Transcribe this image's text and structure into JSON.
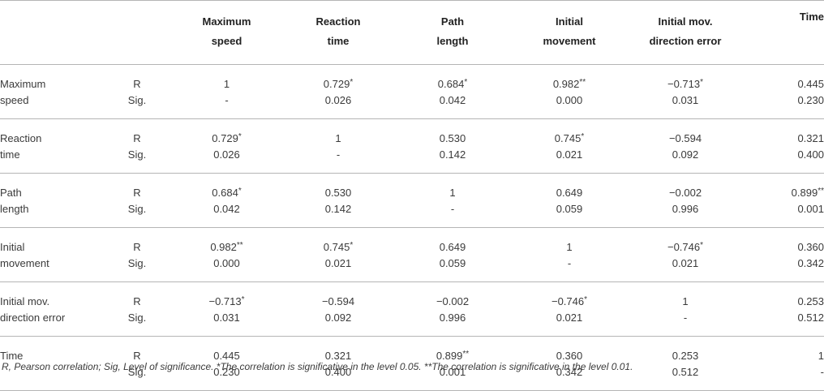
{
  "header": {
    "columns": [
      [
        "Maximum",
        "speed"
      ],
      [
        "Reaction",
        "time"
      ],
      [
        "Path",
        "length"
      ],
      [
        "Initial",
        "movement"
      ],
      [
        "Initial mov.",
        "direction error"
      ],
      [
        "Time",
        ""
      ]
    ]
  },
  "rows": [
    {
      "label": [
        "Maximum",
        "speed"
      ],
      "r": [
        [
          "1",
          ""
        ],
        [
          "0.729",
          "*"
        ],
        [
          "0.684",
          "*"
        ],
        [
          "0.982",
          "**"
        ],
        [
          "−0.713",
          "*"
        ],
        [
          "0.445",
          ""
        ]
      ],
      "sig": [
        "-",
        "0.026",
        "0.042",
        "0.000",
        "0.031",
        "0.230"
      ]
    },
    {
      "label": [
        "Reaction",
        "time"
      ],
      "r": [
        [
          "0.729",
          "*"
        ],
        [
          "1",
          ""
        ],
        [
          "0.530",
          ""
        ],
        [
          "0.745",
          "*"
        ],
        [
          "−0.594",
          ""
        ],
        [
          "0.321",
          ""
        ]
      ],
      "sig": [
        "0.026",
        "-",
        "0.142",
        "0.021",
        "0.092",
        "0.400"
      ]
    },
    {
      "label": [
        "Path",
        "length"
      ],
      "r": [
        [
          "0.684",
          "*"
        ],
        [
          "0.530",
          ""
        ],
        [
          "1",
          ""
        ],
        [
          "0.649",
          ""
        ],
        [
          "−0.002",
          ""
        ],
        [
          "0.899",
          "**"
        ]
      ],
      "sig": [
        "0.042",
        "0.142",
        "-",
        "0.059",
        "0.996",
        "0.001"
      ]
    },
    {
      "label": [
        "Initial",
        "movement"
      ],
      "r": [
        [
          "0.982",
          "**"
        ],
        [
          "0.745",
          "*"
        ],
        [
          "0.649",
          ""
        ],
        [
          "1",
          ""
        ],
        [
          "−0.746",
          "*"
        ],
        [
          "0.360",
          ""
        ]
      ],
      "sig": [
        "0.000",
        "0.021",
        "0.059",
        "-",
        "0.021",
        "0.342"
      ]
    },
    {
      "label": [
        "Initial mov.",
        "direction error"
      ],
      "r": [
        [
          "−0.713",
          "*"
        ],
        [
          "−0.594",
          ""
        ],
        [
          "−0.002",
          ""
        ],
        [
          "−0.746",
          "*"
        ],
        [
          "1",
          ""
        ],
        [
          "0.253",
          ""
        ]
      ],
      "sig": [
        "0.031",
        "0.092",
        "0.996",
        "0.021",
        "-",
        "0.512"
      ]
    },
    {
      "label": [
        "Time",
        ""
      ],
      "r": [
        [
          "0.445",
          ""
        ],
        [
          "0.321",
          ""
        ],
        [
          "0.899",
          "**"
        ],
        [
          "0.360",
          ""
        ],
        [
          "0.253",
          ""
        ],
        [
          "1",
          ""
        ]
      ],
      "sig": [
        "0.230",
        "0.400",
        "0.001",
        "0.342",
        "0.512",
        "-"
      ]
    }
  ],
  "stat_labels": {
    "r": "R",
    "sig": "Sig."
  },
  "footnote": "R, Pearson correlation; Sig, Level of significance. *The correlation is significative in the level 0.05. **The correlation is significative in the level 0.01."
}
